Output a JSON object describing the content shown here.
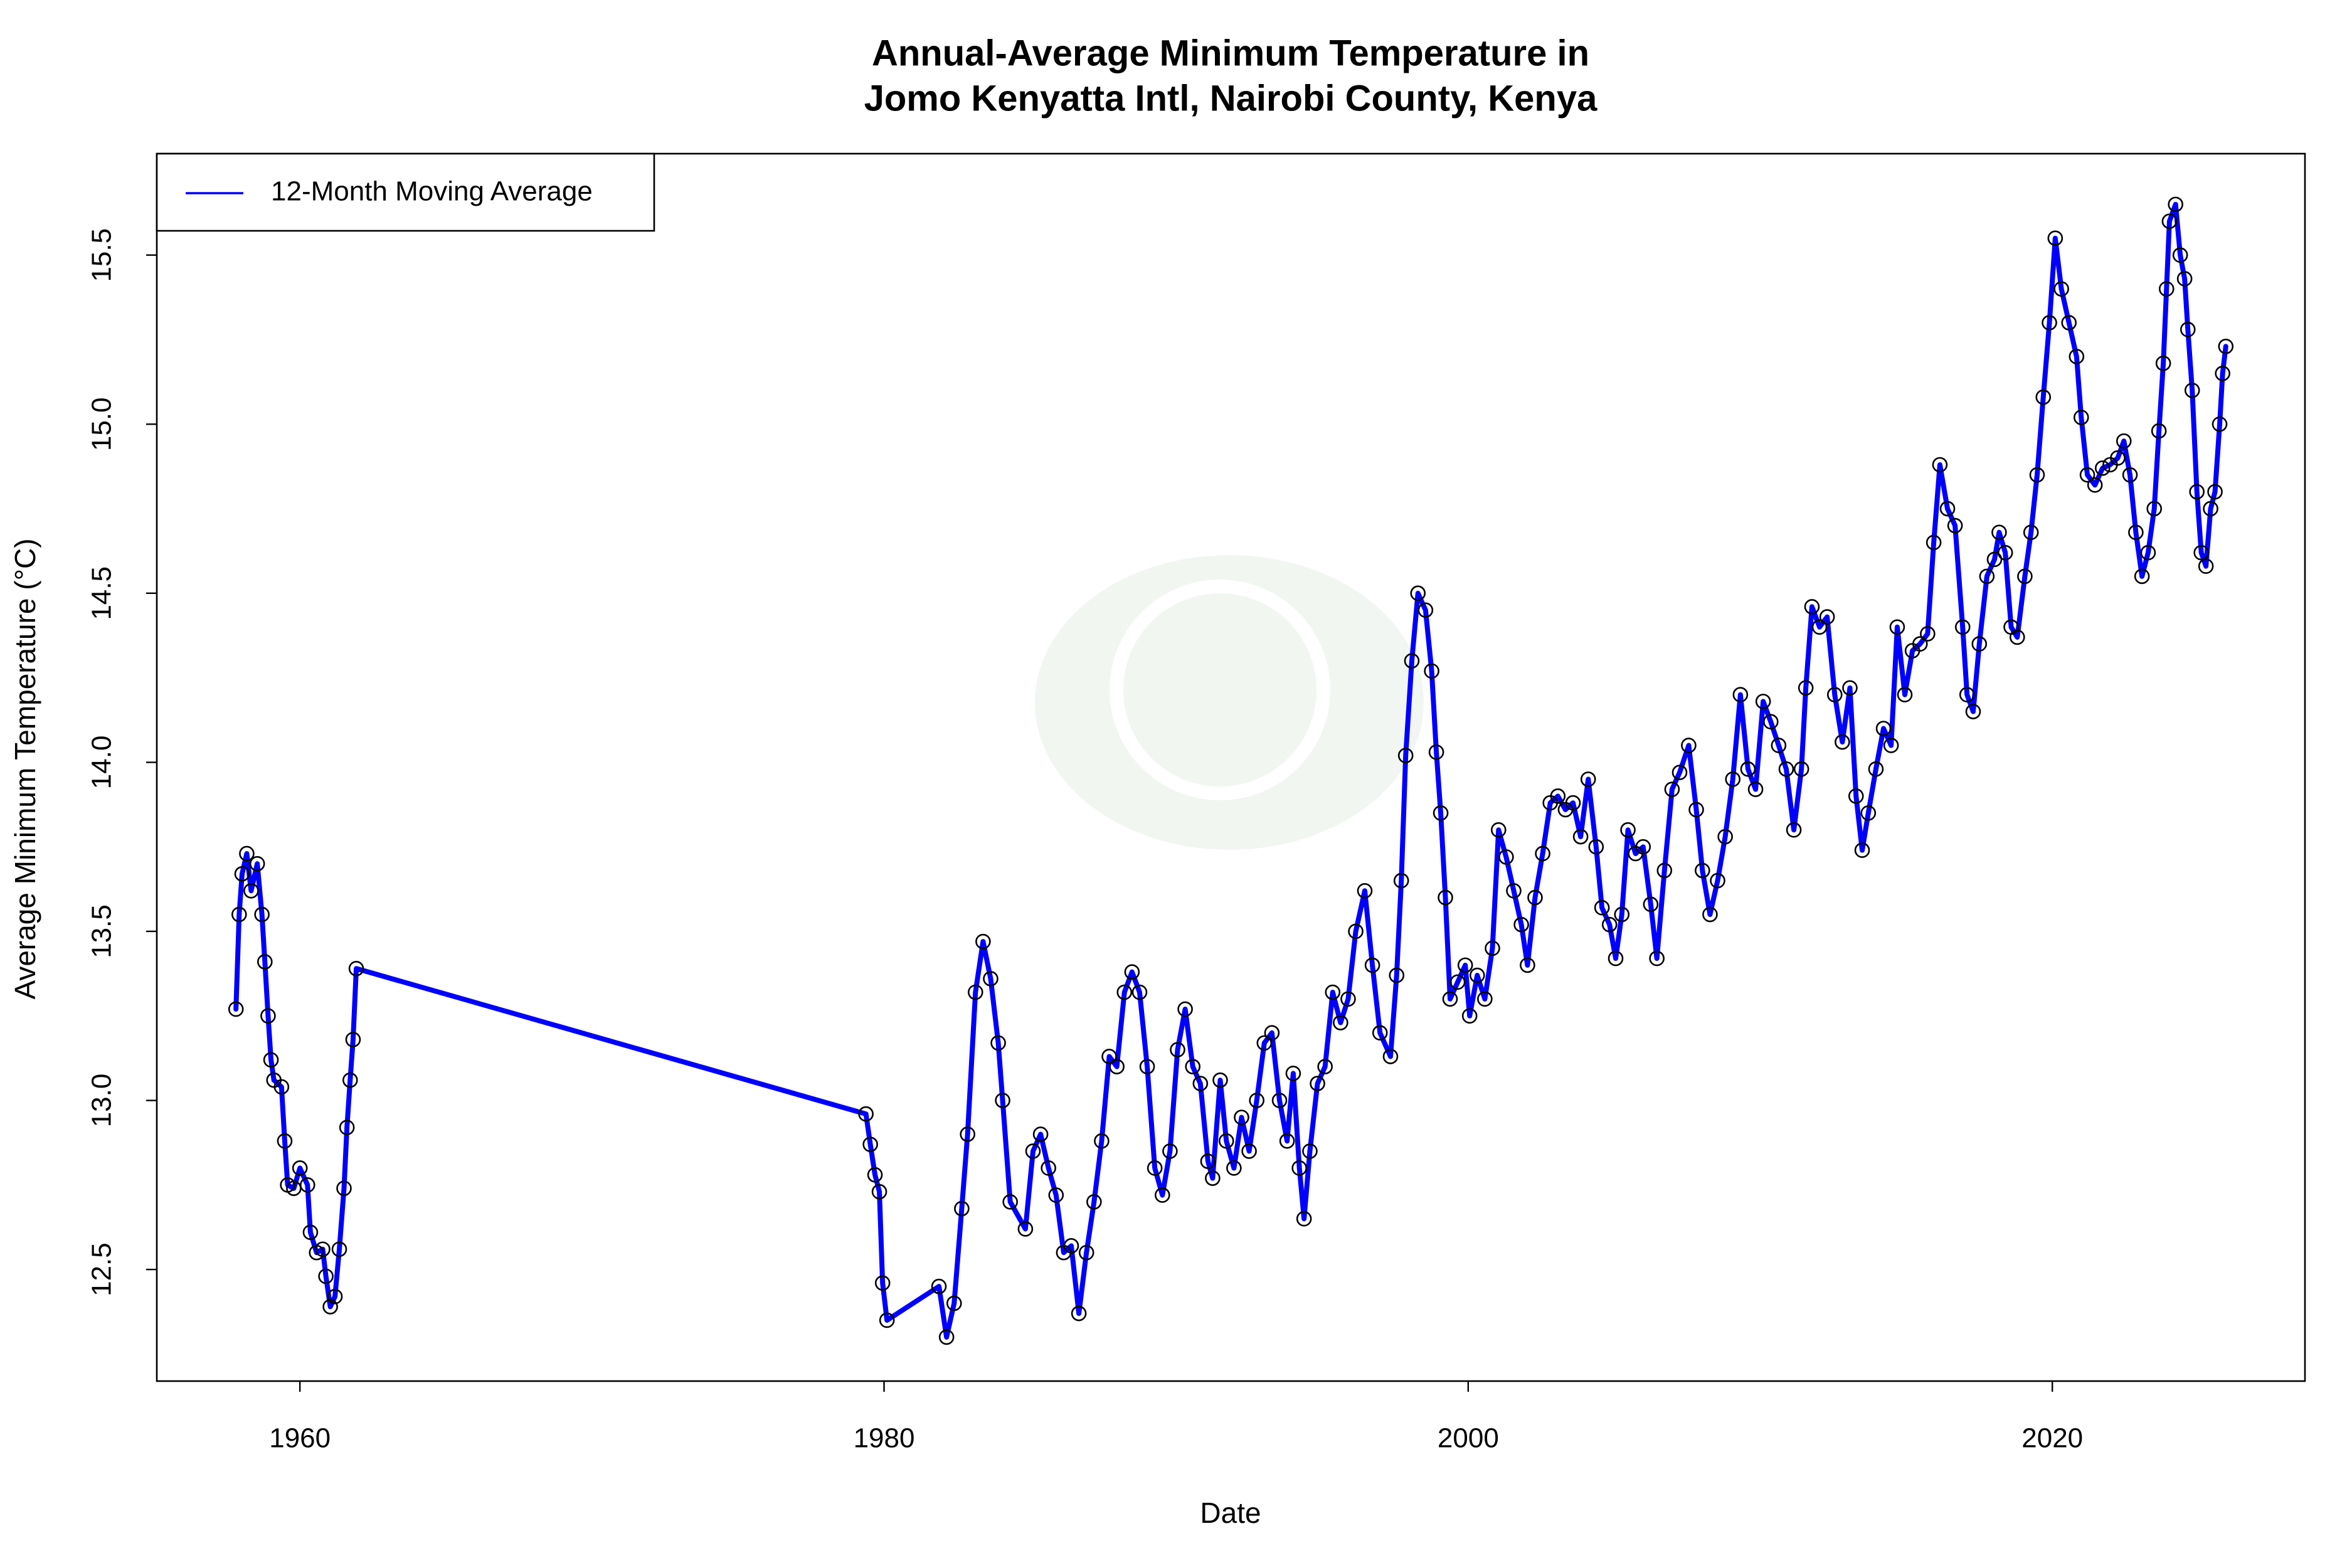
{
  "chart_data": {
    "type": "line",
    "title": [
      "Annual-Average Minimum Temperature in",
      "Jomo Kenyatta Intl, Nairobi County, Kenya"
    ],
    "x_label": "Date",
    "y_label": "Average Minimum Temperature (°C)",
    "legend": "topleft",
    "marker_color": "#000000",
    "xlim": [
      1955.1,
      2028.65
    ],
    "ylim": [
      12.17,
      15.8
    ],
    "xticks": [
      1960,
      1980,
      2000,
      2020
    ],
    "yticks": [
      12.5,
      {
        "value": 13,
        "label": "13.0"
      },
      13.5,
      {
        "value": 14,
        "label": "14.0"
      },
      14.5,
      {
        "value": 15,
        "label": "15.0"
      },
      15.5
    ],
    "x": [
      1957.81,
      1957.92,
      1958.02,
      1958.18,
      1958.33,
      1958.54,
      1958.7,
      1958.8,
      1958.91,
      1959.01,
      1959.11,
      1959.37,
      1959.48,
      1959.58,
      1959.79,
      1960.0,
      1960.26,
      1960.36,
      1960.57,
      1960.78,
      1960.89,
      1961.04,
      1961.2,
      1961.35,
      1961.51,
      1961.61,
      1961.72,
      1961.82,
      1961.93,
      1979.38,
      1979.53,
      1979.69,
      1979.84,
      1979.95,
      1980.1,
      1981.88,
      1982.14,
      1982.4,
      1982.66,
      1982.86,
      1983.13,
      1983.39,
      1983.65,
      1983.91,
      1984.06,
      1984.32,
      1984.84,
      1985.1,
      1985.36,
      1985.63,
      1985.89,
      1986.15,
      1986.41,
      1986.67,
      1986.93,
      1987.19,
      1987.45,
      1987.71,
      1987.97,
      1988.23,
      1988.49,
      1988.75,
      1989.01,
      1989.27,
      1989.53,
      1989.79,
      1990.05,
      1990.31,
      1990.57,
      1990.83,
      1991.09,
      1991.25,
      1991.51,
      1991.72,
      1991.98,
      1992.24,
      1992.5,
      1992.76,
      1993.02,
      1993.28,
      1993.54,
      1993.8,
      1994.01,
      1994.22,
      1994.38,
      1994.58,
      1994.84,
      1995.1,
      1995.36,
      1995.63,
      1995.89,
      1996.15,
      1996.46,
      1996.72,
      1996.98,
      1997.34,
      1997.55,
      1997.71,
      1997.86,
      1998.07,
      1998.28,
      1998.54,
      1998.75,
      1998.91,
      1999.06,
      1999.22,
      1999.38,
      1999.64,
      1999.9,
      2000.05,
      2000.31,
      2000.57,
      2000.83,
      2001.04,
      2001.3,
      2001.56,
      2001.82,
      2002.03,
      2002.29,
      2002.55,
      2002.81,
      2003.07,
      2003.33,
      2003.59,
      2003.85,
      2004.11,
      2004.38,
      2004.58,
      2004.84,
      2005.05,
      2005.26,
      2005.47,
      2005.73,
      2005.99,
      2006.25,
      2006.46,
      2006.72,
      2006.98,
      2007.24,
      2007.55,
      2007.81,
      2008.02,
      2008.28,
      2008.54,
      2008.8,
      2009.06,
      2009.32,
      2009.58,
      2009.84,
      2010.1,
      2010.36,
      2010.63,
      2010.89,
      2011.15,
      2011.41,
      2011.56,
      2011.77,
      2012.03,
      2012.29,
      2012.55,
      2012.81,
      2013.07,
      2013.28,
      2013.49,
      2013.7,
      2013.96,
      2014.22,
      2014.48,
      2014.69,
      2014.95,
      2015.21,
      2015.47,
      2015.73,
      2015.94,
      2016.15,
      2016.41,
      2016.67,
      2016.93,
      2017.08,
      2017.29,
      2017.5,
      2017.76,
      2018.02,
      2018.18,
      2018.39,
      2018.59,
      2018.8,
      2019.06,
      2019.27,
      2019.48,
      2019.69,
      2019.9,
      2020.1,
      2020.31,
      2020.57,
      2020.83,
      2020.99,
      2021.2,
      2021.46,
      2021.72,
      2021.98,
      2022.24,
      2022.45,
      2022.66,
      2022.86,
      2023.07,
      2023.28,
      2023.49,
      2023.65,
      2023.8,
      2023.91,
      2024.01,
      2024.22,
      2024.38,
      2024.53,
      2024.64,
      2024.79,
      2024.95,
      2025.1,
      2025.26,
      2025.42,
      2025.57,
      2025.73,
      2025.83,
      2025.94
    ],
    "series": [
      {
        "name": "12-Month Moving Average",
        "color": "#0000ff",
        "values": [
          13.27,
          13.55,
          13.67,
          13.73,
          13.62,
          13.7,
          13.55,
          13.41,
          13.25,
          13.12,
          13.06,
          13.04,
          12.88,
          12.75,
          12.74,
          12.8,
          12.75,
          12.61,
          12.55,
          12.56,
          12.48,
          12.39,
          12.42,
          12.56,
          12.74,
          12.92,
          13.06,
          13.18,
          13.39,
          12.96,
          12.87,
          12.78,
          12.73,
          12.46,
          12.35,
          12.45,
          12.3,
          12.4,
          12.68,
          12.9,
          13.32,
          13.47,
          13.36,
          13.17,
          13.0,
          12.7,
          12.62,
          12.85,
          12.9,
          12.8,
          12.72,
          12.55,
          12.57,
          12.37,
          12.55,
          12.7,
          12.88,
          13.13,
          13.1,
          13.32,
          13.38,
          13.32,
          13.1,
          12.8,
          12.72,
          12.85,
          13.15,
          13.27,
          13.1,
          13.05,
          12.82,
          12.77,
          13.06,
          12.88,
          12.8,
          12.95,
          12.85,
          13.0,
          13.17,
          13.2,
          13.0,
          12.88,
          13.08,
          12.8,
          12.65,
          12.85,
          13.05,
          13.1,
          13.32,
          13.23,
          13.3,
          13.5,
          13.62,
          13.4,
          13.2,
          13.13,
          13.37,
          13.65,
          14.02,
          14.3,
          14.5,
          14.45,
          14.27,
          14.03,
          13.85,
          13.6,
          13.3,
          13.35,
          13.4,
          13.25,
          13.37,
          13.3,
          13.45,
          13.8,
          13.72,
          13.62,
          13.52,
          13.4,
          13.6,
          13.73,
          13.88,
          13.9,
          13.86,
          13.88,
          13.78,
          13.95,
          13.75,
          13.57,
          13.52,
          13.42,
          13.55,
          13.8,
          13.73,
          13.75,
          13.58,
          13.42,
          13.68,
          13.92,
          13.97,
          14.05,
          13.86,
          13.68,
          13.55,
          13.65,
          13.78,
          13.95,
          14.2,
          13.98,
          13.92,
          14.18,
          14.12,
          14.05,
          13.98,
          13.8,
          13.98,
          14.22,
          14.46,
          14.4,
          14.43,
          14.2,
          14.06,
          14.22,
          13.9,
          13.74,
          13.85,
          13.98,
          14.1,
          14.05,
          14.4,
          14.2,
          14.33,
          14.35,
          14.38,
          14.65,
          14.88,
          14.75,
          14.7,
          14.4,
          14.2,
          14.15,
          14.35,
          14.55,
          14.6,
          14.68,
          14.62,
          14.4,
          14.37,
          14.55,
          14.68,
          14.85,
          15.08,
          15.3,
          15.55,
          15.4,
          15.3,
          15.2,
          15.02,
          14.85,
          14.82,
          14.87,
          14.88,
          14.9,
          14.95,
          14.85,
          14.68,
          14.55,
          14.62,
          14.75,
          14.98,
          15.18,
          15.4,
          15.6,
          15.65,
          15.5,
          15.43,
          15.28,
          15.1,
          14.8,
          14.62,
          14.58,
          14.75,
          14.8,
          15.0,
          15.15,
          15.23
        ]
      }
    ]
  }
}
